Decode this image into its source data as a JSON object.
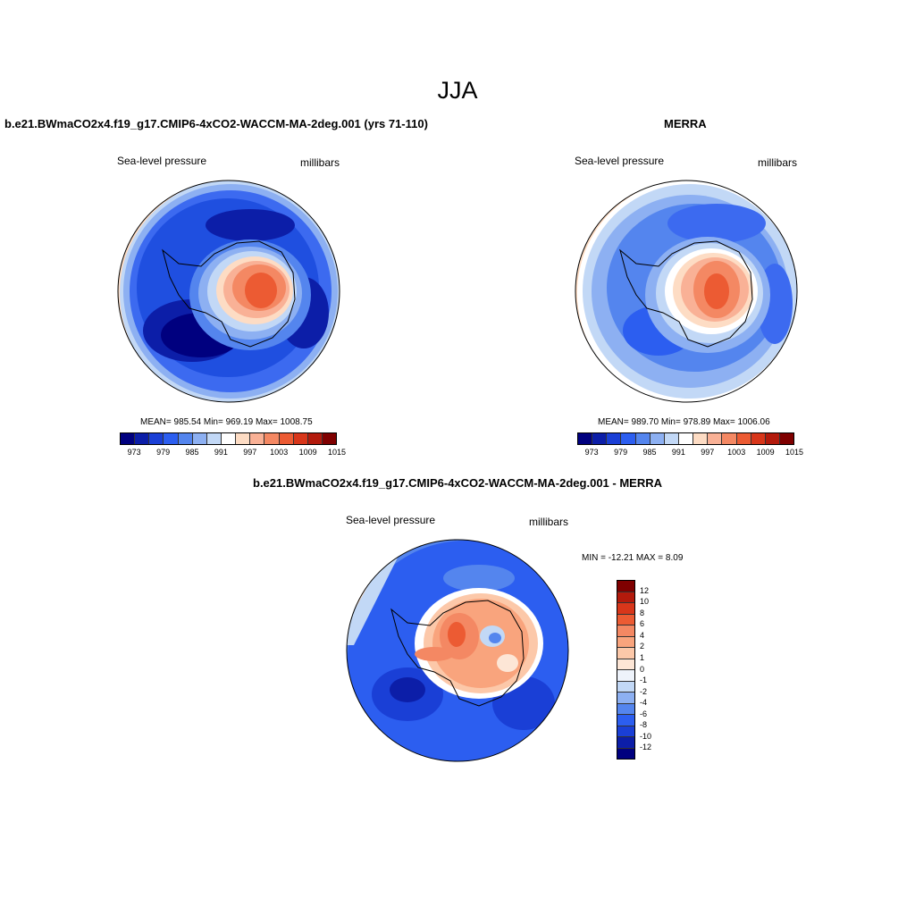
{
  "title": "JJA",
  "left_panel": {
    "title": "b.e21.BWmaCO2x4.f19_g17.CMIP6-4xCO2-WACCM-MA-2deg.001 (yrs 71-110)",
    "variable": "Sea-level pressure",
    "units": "millibars",
    "stats": "MEAN= 985.54  Min= 969.19  Max= 1008.75"
  },
  "right_panel": {
    "title": "MERRA",
    "variable": "Sea-level pressure",
    "units": "millibars",
    "stats": "MEAN= 989.70  Min= 978.89  Max= 1006.06"
  },
  "diff_panel": {
    "title": "b.e21.BWmaCO2x4.f19_g17.CMIP6-4xCO2-WACCM-MA-2deg.001 - MERRA",
    "variable": "Sea-level pressure",
    "units": "millibars",
    "stats": "MIN = -12.21 MAX =   8.09"
  },
  "colorbar_abs": {
    "colors": [
      "#00007f",
      "#0c1ea8",
      "#1a3fd6",
      "#2c5ef0",
      "#5485ee",
      "#8db0f2",
      "#c2d8f6",
      "#ffffff",
      "#fddcc4",
      "#f9b196",
      "#f48863",
      "#ec5b33",
      "#d8361a",
      "#b31a0c",
      "#7f0000"
    ],
    "ticks": [
      "973",
      "979",
      "985",
      "991",
      "997",
      "1003",
      "1009",
      "1015"
    ]
  },
  "colorbar_diff": {
    "colors": [
      "#7f0000",
      "#b31a0c",
      "#d8361a",
      "#ec5b33",
      "#f48863",
      "#f9a47d",
      "#fcc8a9",
      "#fde6d6",
      "#eef3fb",
      "#c2d8f6",
      "#8db0f2",
      "#5485ee",
      "#2c5ef0",
      "#1a3fd6",
      "#0c1ea8",
      "#00007f"
    ],
    "ticks": [
      "12",
      "10",
      "8",
      "6",
      "4",
      "2",
      "1",
      "0",
      "-1",
      "-2",
      "-4",
      "-6",
      "-8",
      "-10",
      "-12"
    ]
  },
  "map_colors": {
    "deep_blue": "#0a1e8c",
    "blue": "#1f4fe0",
    "mid_blue": "#3c6af0",
    "light_blue": "#8fb2f2",
    "pale_blue": "#c8dcf7",
    "white": "#f4f6fb",
    "pale_red": "#fcd4bc",
    "light_red": "#f7a07a",
    "red": "#ee6235",
    "deep_red": "#d8361a"
  }
}
